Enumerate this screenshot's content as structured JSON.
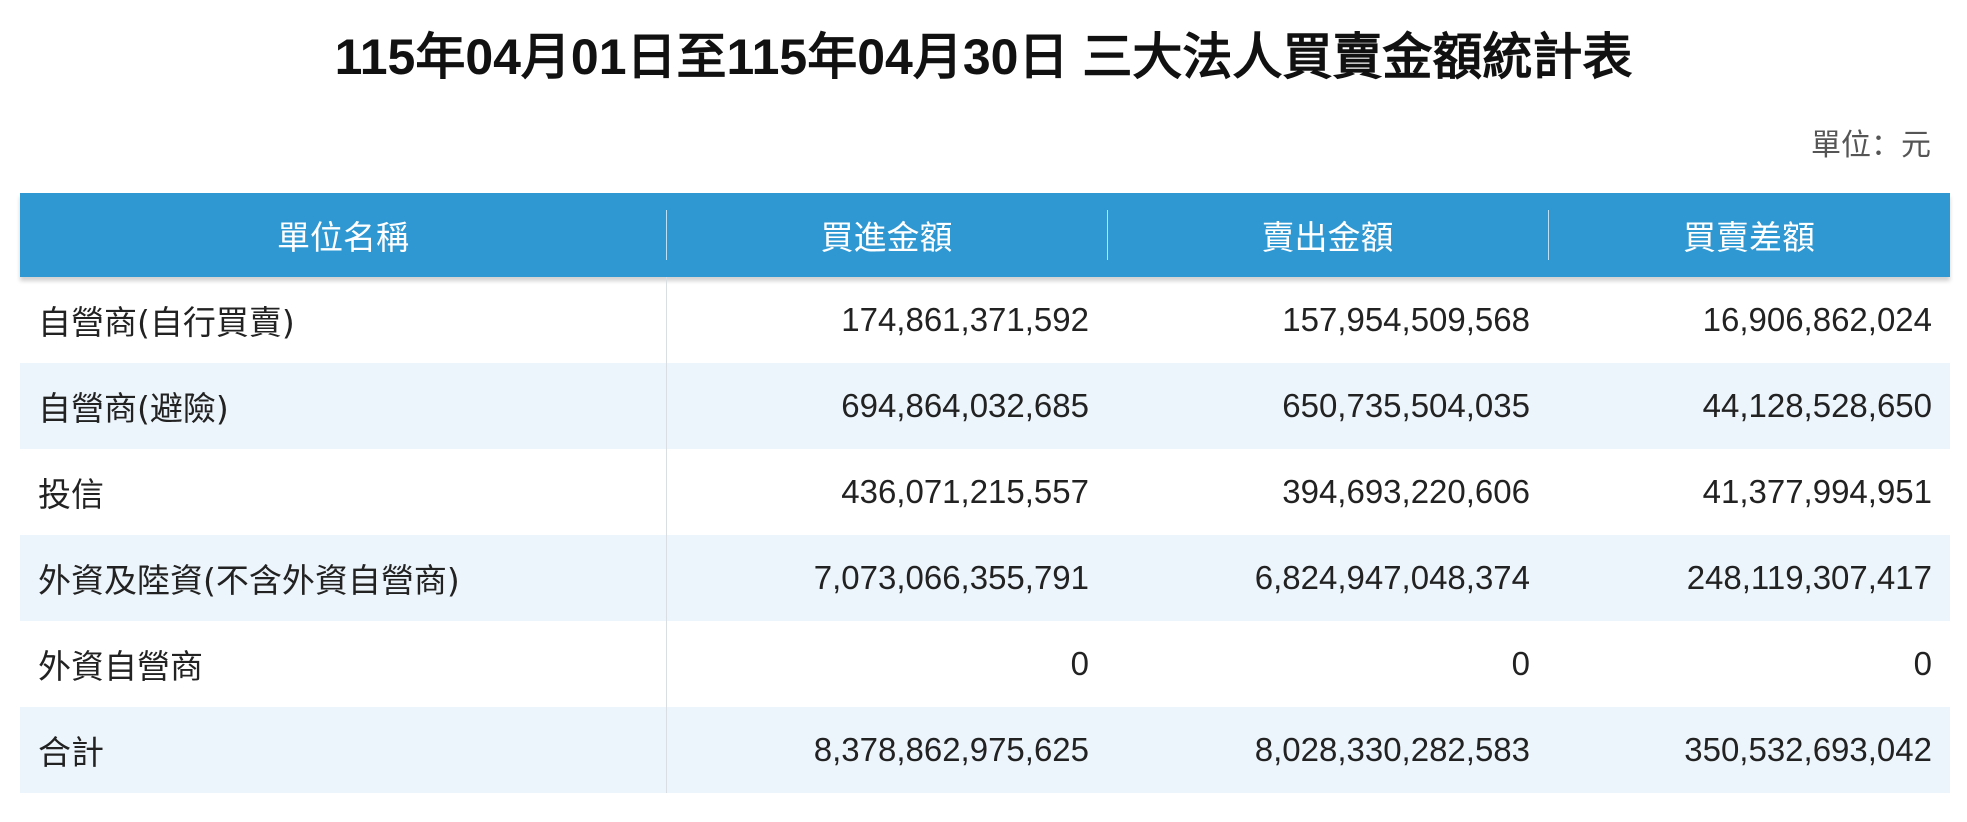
{
  "title": "115年04月01日至115年04月30日 三大法人買賣金額統計表",
  "unit_label": "單位：元",
  "table": {
    "headers": [
      "單位名稱",
      "買進金額",
      "賣出金額",
      "買賣差額"
    ],
    "rows": [
      [
        "自營商(自行買賣)",
        "174,861,371,592",
        "157,954,509,568",
        "16,906,862,024"
      ],
      [
        "自營商(避險)",
        "694,864,032,685",
        "650,735,504,035",
        "44,128,528,650"
      ],
      [
        "投信",
        "436,071,215,557",
        "394,693,220,606",
        "41,377,994,951"
      ],
      [
        "外資及陸資(不含外資自營商)",
        "7,073,066,355,791",
        "6,824,947,048,374",
        "248,119,307,417"
      ],
      [
        "外資自營商",
        "0",
        "0",
        "0"
      ],
      [
        "合計",
        "8,378,862,975,625",
        "8,028,330,282,583",
        "350,532,693,042"
      ]
    ]
  }
}
